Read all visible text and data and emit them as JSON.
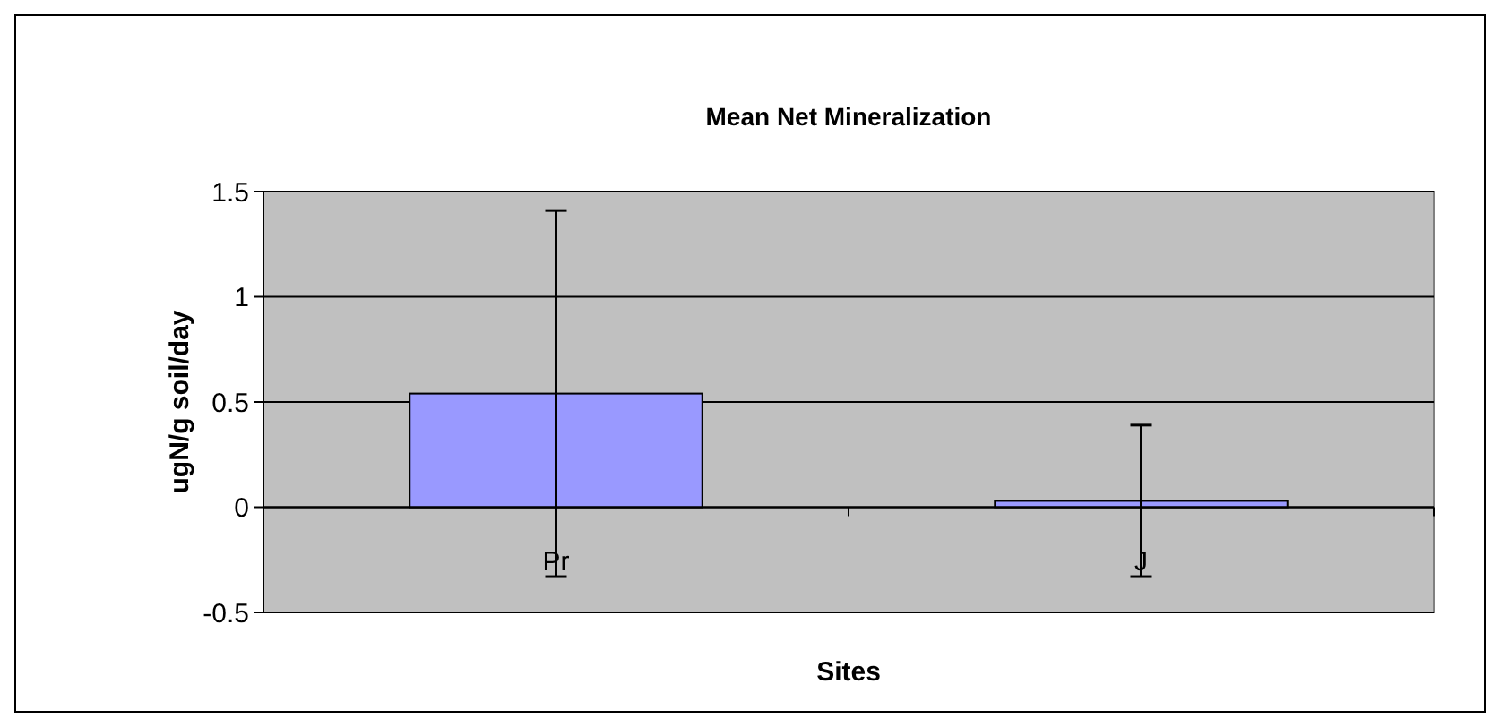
{
  "chart_data": {
    "type": "bar",
    "title": "Mean Net Mineralization",
    "xlabel": "Sites",
    "ylabel": "ugN/g soil/day",
    "categories": [
      "Pr",
      "J"
    ],
    "values": [
      0.54,
      0.03
    ],
    "errors": [
      0.87,
      0.36
    ],
    "color": "#9999ff",
    "ylim": [
      -0.5,
      1.5
    ],
    "yticks": [
      -0.5,
      0,
      0.5,
      1,
      1.5
    ],
    "grid": "y"
  }
}
